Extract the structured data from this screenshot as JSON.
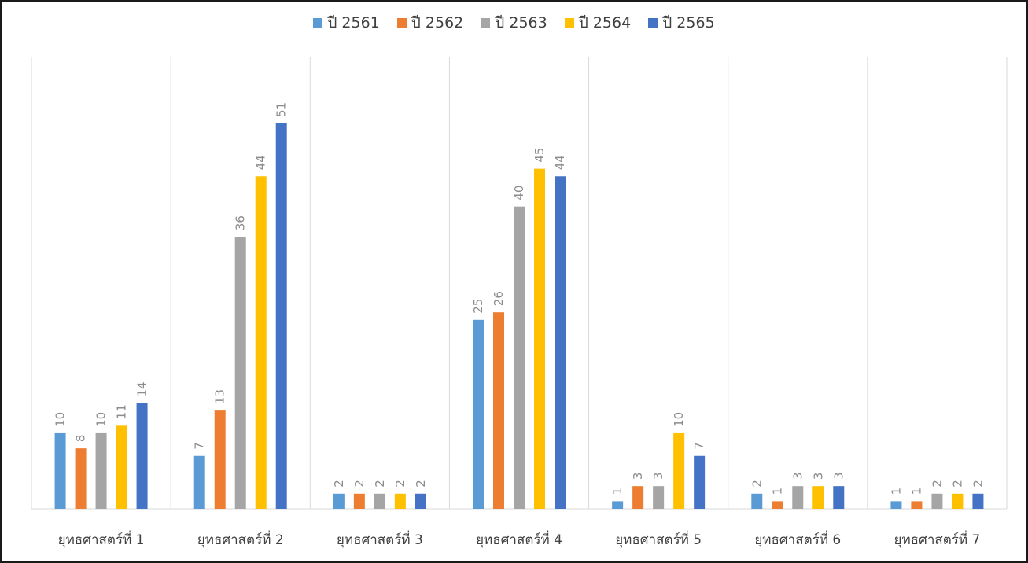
{
  "chart_data": {
    "type": "bar",
    "categories": [
      "ยุทธศาสตร์ที่ 1",
      "ยุทธศาสตร์ที่ 2",
      "ยุทธศาสตร์ที่ 3",
      "ยุทธศาสตร์ที่ 4",
      "ยุทธศาสตร์ที่ 5",
      "ยุทธศาสตร์ที่ 6",
      "ยุทธศาสตร์ที่ 7"
    ],
    "series": [
      {
        "name": "ปี 2561",
        "color": "#5B9BD5",
        "values": [
          10,
          7,
          2,
          25,
          1,
          2,
          1
        ]
      },
      {
        "name": "ปี 2562",
        "color": "#ED7D31",
        "values": [
          8,
          13,
          2,
          26,
          3,
          1,
          1
        ]
      },
      {
        "name": "ปี 2563",
        "color": "#A5A5A5",
        "values": [
          10,
          36,
          2,
          40,
          3,
          3,
          2
        ]
      },
      {
        "name": "ปี 2564",
        "color": "#FFC000",
        "values": [
          11,
          44,
          2,
          45,
          10,
          3,
          2
        ]
      },
      {
        "name": "ปี 2565",
        "color": "#4472C4",
        "values": [
          14,
          51,
          2,
          44,
          7,
          3,
          2
        ]
      }
    ],
    "ylim": [
      0,
      51
    ],
    "grid": "vertical category separators",
    "legend": "top-center",
    "data_labels": "rotated, above bars"
  }
}
